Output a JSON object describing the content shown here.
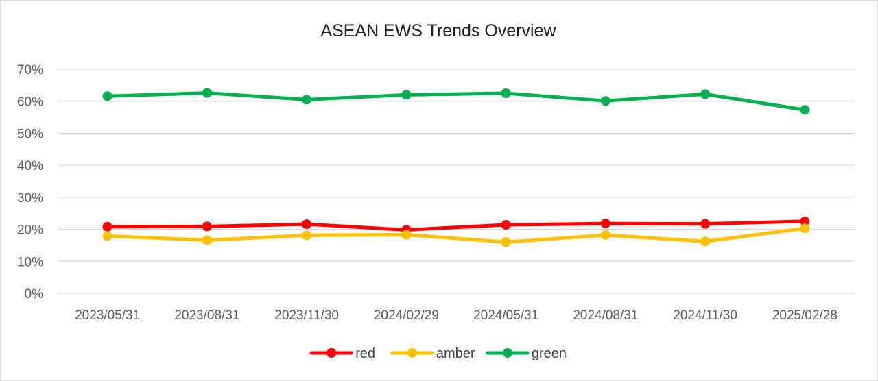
{
  "chart_data": {
    "type": "line",
    "title": "ASEAN EWS Trends Overview",
    "xlabel": "",
    "ylabel": "",
    "categories": [
      "2023/05/31",
      "2023/08/31",
      "2023/11/30",
      "2024/02/29",
      "2024/05/31",
      "2024/08/31",
      "2024/11/30",
      "2025/02/28"
    ],
    "ylim": [
      0,
      70
    ],
    "yticks": [
      0,
      10,
      20,
      30,
      40,
      50,
      60,
      70
    ],
    "ytick_labels": [
      "0%",
      "10%",
      "20%",
      "30%",
      "40%",
      "50%",
      "60%",
      "70%"
    ],
    "grid": true,
    "legend_position": "bottom",
    "series": [
      {
        "name": "red",
        "color": "#ff0000",
        "values": [
          20.8,
          20.9,
          21.6,
          19.8,
          21.4,
          21.8,
          21.7,
          22.5
        ]
      },
      {
        "name": "amber",
        "color": "#ffc000",
        "values": [
          17.9,
          16.6,
          18.1,
          18.3,
          16.0,
          18.2,
          16.2,
          20.3
        ]
      },
      {
        "name": "green",
        "color": "#00b050",
        "values": [
          61.6,
          62.6,
          60.5,
          62.0,
          62.5,
          60.1,
          62.2,
          57.3
        ]
      }
    ]
  }
}
